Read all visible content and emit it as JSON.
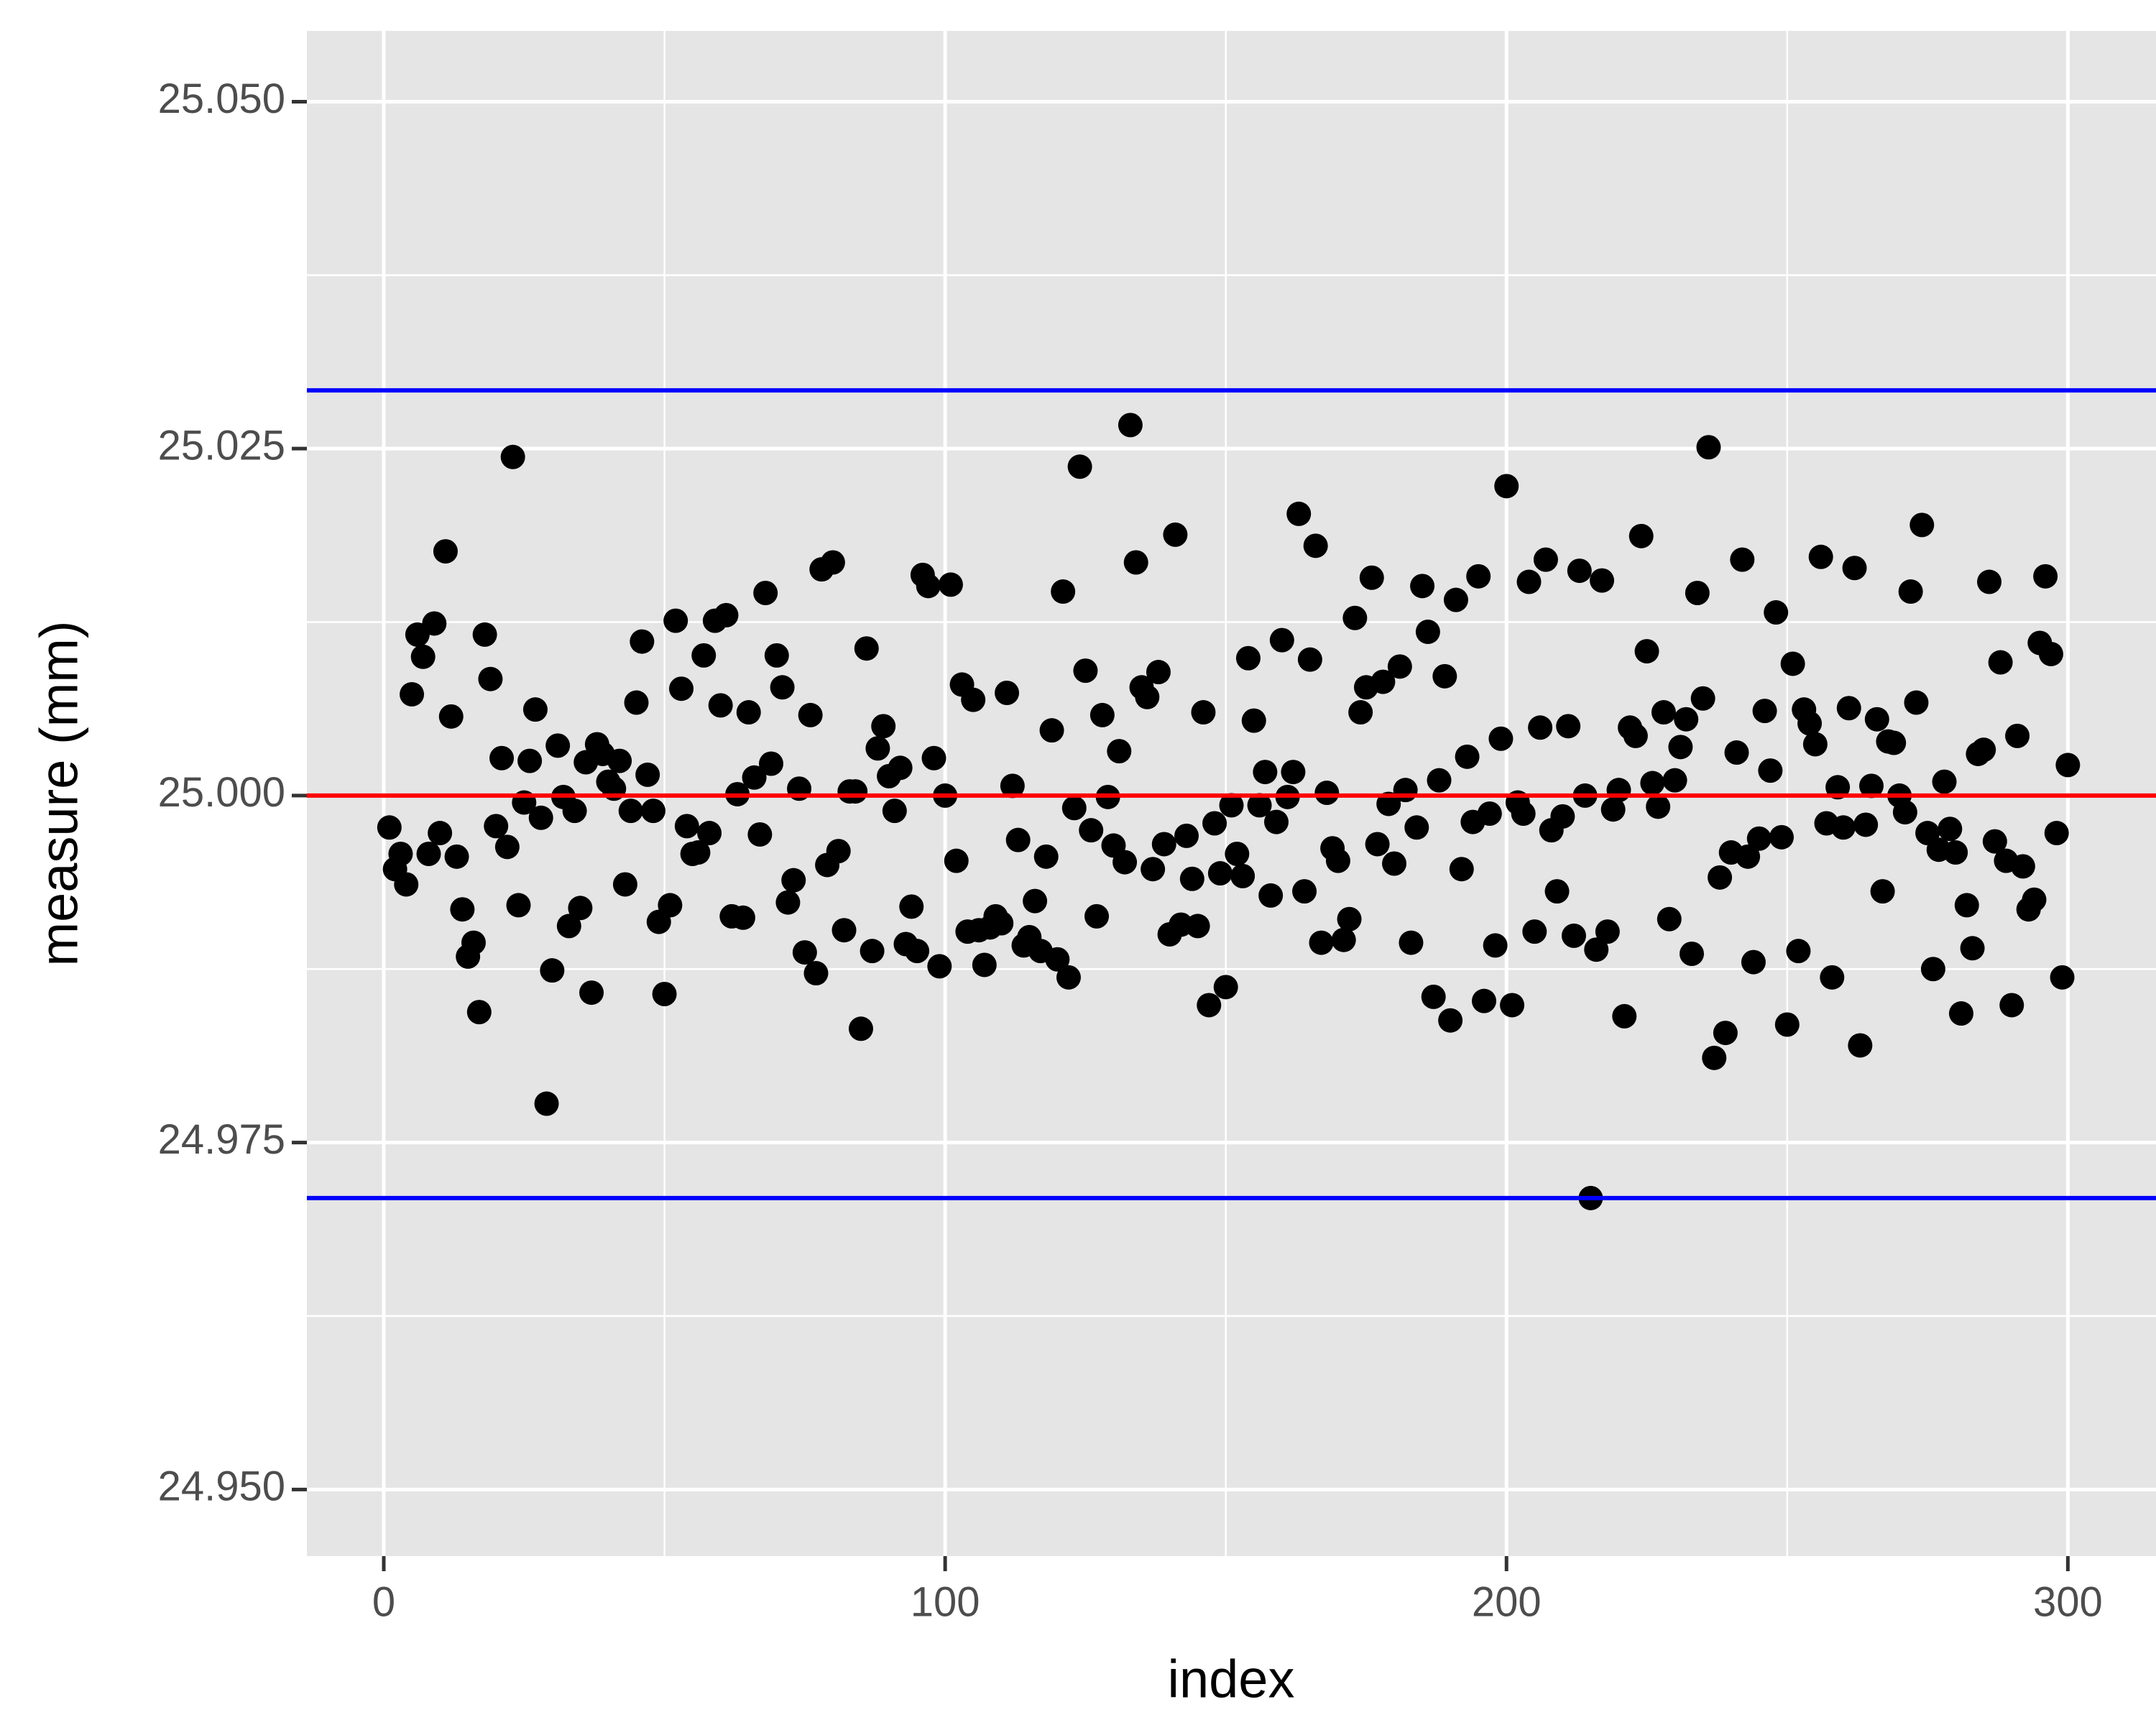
{
  "chart_data": {
    "type": "scatter",
    "x_label": "index",
    "y_label": "measure (mm)",
    "xlim": [
      -13.7,
      315.7
    ],
    "ylim": [
      24.9452,
      25.0551
    ],
    "xticks": [
      0,
      100,
      200,
      300
    ],
    "yticks": [
      {
        "value": 24.95,
        "label": "24.950"
      },
      24.975,
      {
        "value": 25,
        "label": "25.000"
      },
      25.025,
      {
        "value": 25.05,
        "label": "25.050"
      }
    ],
    "x_minor_grid": [
      50,
      150,
      250
    ],
    "y_minor_grid": [
      24.9625,
      24.9875,
      25.0125,
      25.0375
    ],
    "grid": true,
    "background": "#e5e5e5",
    "color": "#000000",
    "reference_lines": [
      {
        "value": 25.0292,
        "color": "#0000ff"
      },
      {
        "value": 25.0,
        "color": "#ff0000"
      },
      {
        "value": 24.971,
        "color": "#0000ff"
      }
    ],
    "x": [
      1,
      2,
      3,
      4,
      5,
      6,
      7,
      8,
      9,
      10,
      11,
      12,
      13,
      14,
      15,
      16,
      17,
      18,
      19,
      20,
      21,
      22,
      23,
      24,
      25,
      26,
      27,
      28,
      29,
      30,
      31,
      32,
      33,
      34,
      35,
      36,
      37,
      38,
      39,
      40,
      41,
      42,
      43,
      44,
      45,
      46,
      47,
      48,
      49,
      50,
      51,
      52,
      53,
      54,
      55,
      56,
      57,
      58,
      59,
      60,
      61,
      62,
      63,
      64,
      65,
      66,
      67,
      68,
      69,
      70,
      71,
      72,
      73,
      74,
      75,
      76,
      77,
      78,
      79,
      80,
      81,
      82,
      83,
      84,
      85,
      86,
      87,
      88,
      89,
      90,
      91,
      92,
      93,
      94,
      95,
      96,
      97,
      98,
      99,
      100,
      101,
      102,
      103,
      104,
      105,
      106,
      107,
      108,
      109,
      110,
      111,
      112,
      113,
      114,
      115,
      116,
      117,
      118,
      119,
      120,
      121,
      122,
      123,
      124,
      125,
      126,
      127,
      128,
      129,
      130,
      131,
      132,
      133,
      134,
      135,
      136,
      137,
      138,
      139,
      140,
      141,
      142,
      143,
      144,
      145,
      146,
      147,
      148,
      149,
      150,
      151,
      152,
      153,
      154,
      155,
      156,
      157,
      158,
      159,
      160,
      161,
      162,
      163,
      164,
      165,
      166,
      167,
      168,
      169,
      170,
      171,
      172,
      173,
      174,
      175,
      176,
      177,
      178,
      179,
      180,
      181,
      182,
      183,
      184,
      185,
      186,
      187,
      188,
      189,
      190,
      191,
      192,
      193,
      194,
      195,
      196,
      197,
      198,
      199,
      200,
      201,
      202,
      203,
      204,
      205,
      206,
      207,
      208,
      209,
      210,
      211,
      212,
      213,
      214,
      215,
      216,
      217,
      218,
      219,
      220,
      221,
      222,
      223,
      224,
      225,
      226,
      227,
      228,
      229,
      230,
      231,
      232,
      233,
      234,
      235,
      236,
      237,
      238,
      239,
      240,
      241,
      242,
      243,
      244,
      245,
      246,
      247,
      248,
      249,
      250,
      251,
      252,
      253,
      254,
      255,
      256,
      257,
      258,
      259,
      260,
      261,
      262,
      263,
      264,
      265,
      266,
      267,
      268,
      269,
      270,
      271,
      272,
      273,
      274,
      275,
      276,
      277,
      278,
      279,
      280,
      281,
      282,
      283,
      284,
      285,
      286,
      287,
      288,
      289,
      290,
      291,
      292,
      293,
      294,
      295,
      296,
      297,
      298,
      299,
      300
    ],
    "values": [
      24.9977,
      24.9947,
      24.9958,
      24.9936,
      25.0073,
      25.0116,
      25.01,
      24.9958,
      25.0124,
      24.9973,
      25.0176,
      25.0057,
      24.9956,
      24.9918,
      24.9884,
      24.9894,
      24.9844,
      25.0116,
      25.0084,
      24.9978,
      25.0027,
      24.9963,
      25.0244,
      24.9921,
      24.9995,
      25.0025,
      25.0062,
      24.9984,
      24.9778,
      24.9874,
      25.0036,
      24.9999,
      24.9906,
      24.9989,
      24.9919,
      25.0024,
      24.9858,
      25.0037,
      25.003,
      25.001,
      25.0005,
      25.0025,
      24.9936,
      24.9989,
      25.0067,
      25.0111,
      25.0015,
      24.9989,
      24.9909,
      24.9857,
      24.9921,
      25.0126,
      25.0077,
      24.9978,
      24.9958,
      24.9959,
      25.0101,
      24.9973,
      25.0126,
      25.0065,
      25.013,
      24.9913,
      25.0001,
      24.9912,
      25.006,
      25.0013,
      24.9972,
      25.0146,
      25.0023,
      25.0101,
      25.0078,
      24.9923,
      24.9939,
      25.0005,
      24.9887,
      25.0058,
      24.9872,
      25.0163,
      24.995,
      25.0168,
      24.996,
      24.9903,
      25.0003,
      25.0003,
      24.9832,
      25.0106,
      24.9888,
      25.0034,
      25.005,
      25.0014,
      24.9989,
      25.002,
      24.9893,
      24.992,
      24.9888,
      25.0159,
      25.0151,
      25.0027,
      24.9877,
      25.0,
      25.0152,
      24.9953,
      25.008,
      24.9902,
      25.0069,
      24.9903,
      24.9878,
      24.9905,
      24.9913,
      24.9908,
      25.0074,
      25.0007,
      24.9968,
      24.9892,
      24.9898,
      24.9924,
      24.9888,
      24.9956,
      25.0047,
      24.9882,
      25.0147,
      24.9869,
      24.9991,
      25.0237,
      25.009,
      24.9975,
      24.9913,
      25.0058,
      24.9999,
      24.9964,
      25.0032,
      24.9952,
      25.0267,
      25.0168,
      25.0078,
      25.0071,
      24.9947,
      25.0089,
      24.9965,
      24.99,
      25.0188,
      24.9907,
      24.9971,
      24.994,
      24.9906,
      25.006,
      24.9849,
      24.998,
      24.9944,
      24.9862,
      24.9993,
      24.9958,
      24.9942,
      25.0099,
      25.0054,
      24.9993,
      25.0017,
      24.9928,
      24.9981,
      25.0112,
      24.9999,
      25.0017,
      25.0203,
      24.9931,
      25.0098,
      25.018,
      24.9894,
      25.0002,
      24.9962,
      24.9953,
      24.9896,
      24.9911,
      25.0128,
      25.006,
      25.0078,
      25.0157,
      24.9965,
      25.0082,
      24.9994,
      24.9951,
      25.0093,
      25.0004,
      24.9894,
      24.9977,
      25.0151,
      25.0118,
      24.9855,
      25.0011,
      25.0086,
      24.9838,
      25.0141,
      24.9947,
      25.0028,
      24.9981,
      25.0158,
      24.9852,
      24.9987,
      24.9892,
      25.0041,
      25.0223,
      24.9849,
      24.9995,
      24.9987,
      25.0154,
      24.9902,
      25.0049,
      25.017,
      24.9975,
      24.9931,
      24.9985,
      25.005,
      24.9899,
      25.0162,
      25.0,
      24.971,
      24.9889,
      25.0155,
      24.9902,
      24.999,
      25.0004,
      24.9841,
      25.0049,
      25.0043,
      25.0187,
      25.0104,
      25.0009,
      24.9992,
      25.006,
      24.9911,
      25.0011,
      25.0035,
      25.0055,
      24.9886,
      25.0146,
      25.007,
      25.0251,
      24.9811,
      24.9941,
      24.9829,
      24.9959,
      25.0031,
      25.017,
      24.9956,
      24.988,
      24.9969,
      25.0061,
      25.0018,
      25.0132,
      24.997,
      24.9835,
      25.0095,
      24.9888,
      25.0062,
      25.0052,
      25.0037,
      25.0172,
      24.998,
      24.9869,
      25.0006,
      24.9977,
      25.0063,
      25.0164,
      24.982,
      24.9979,
      25.0007,
      25.0055,
      24.9931,
      25.0039,
      25.0038,
      25.0,
      24.9988,
      25.0147,
      25.0067,
      25.0195,
      24.9973,
      24.9875,
      24.9961,
      25.001,
      24.9976,
      24.9959,
      24.9843,
      24.9921,
      24.989,
      25.003,
      25.0033,
      25.0154,
      24.9967,
      25.0096,
      24.9953,
      24.9849,
      25.0043,
      24.9949,
      24.9918,
      24.9925,
      25.011,
      25.0158,
      25.0102,
      24.9973,
      24.9869,
      25.0022
    ]
  }
}
